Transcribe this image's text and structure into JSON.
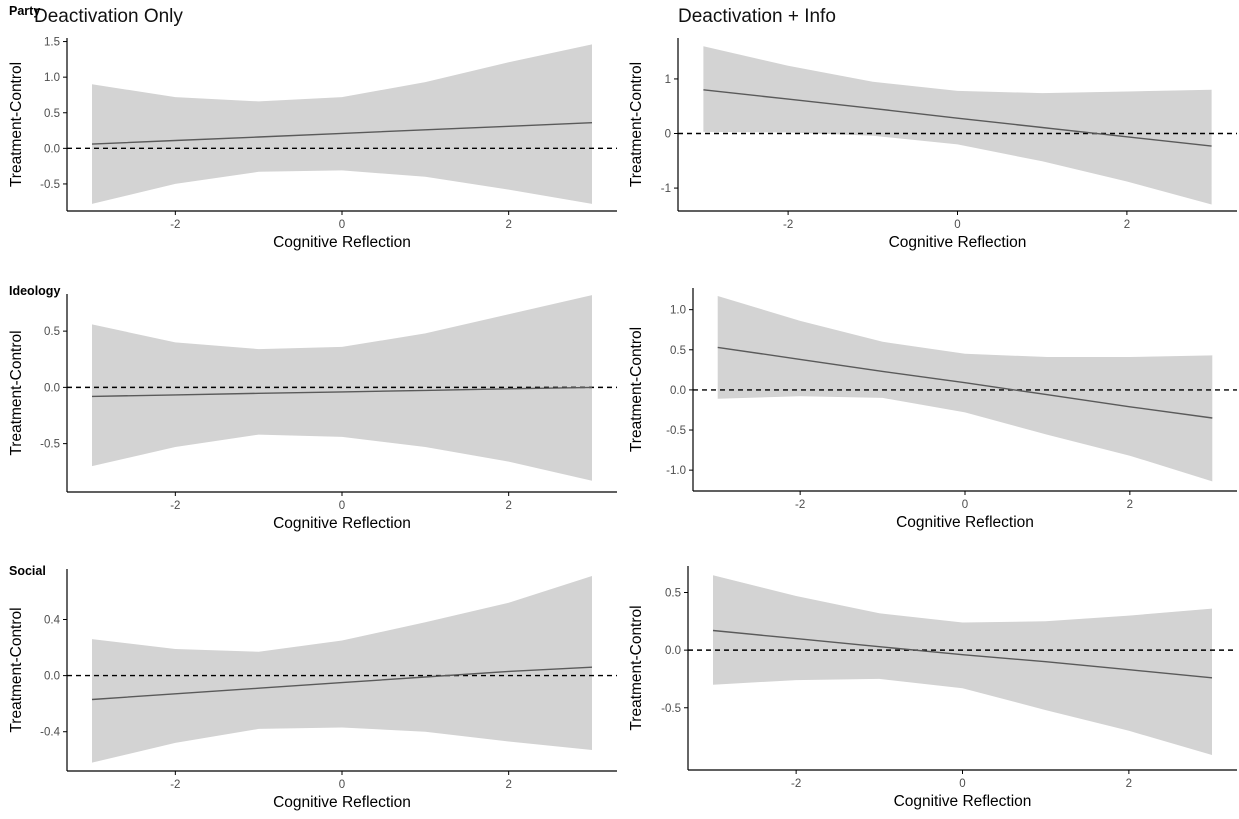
{
  "columns": [
    "Deactivation Only",
    "Deactivation + Info"
  ],
  "rows": [
    "Party",
    "Ideology",
    "Social"
  ],
  "colors": {
    "ribbon": "#d3d3d3",
    "line": "#5a5a5a",
    "reference_line": "#000000",
    "axis": "#000000",
    "tick_label": "#4d4d4d",
    "text": "#000000"
  },
  "chart_data": [
    {
      "type": "line",
      "row": "Party",
      "column": "Deactivation Only",
      "xlabel": "Cognitive Reflection",
      "ylabel": "Treatment-Control",
      "xlim": [
        -3.3,
        3.3
      ],
      "ylim": [
        -0.88,
        1.55
      ],
      "xticks": [
        -2,
        0,
        2
      ],
      "yticks": [
        -0.5,
        0.0,
        0.5,
        1.0,
        1.5
      ],
      "ytick_labels": [
        "-0.5",
        "0.0",
        "0.5",
        "1.0",
        "1.5"
      ],
      "reference_line": {
        "y": 0,
        "style": "dashed"
      },
      "x": [
        -3,
        -2,
        -1,
        0,
        1,
        2,
        3
      ],
      "estimate": [
        0.06,
        0.11,
        0.16,
        0.21,
        0.26,
        0.31,
        0.36
      ],
      "lower": [
        -0.78,
        -0.5,
        -0.33,
        -0.31,
        -0.4,
        -0.58,
        -0.78
      ],
      "upper": [
        0.9,
        0.72,
        0.66,
        0.72,
        0.93,
        1.21,
        1.46
      ],
      "grid": false
    },
    {
      "type": "line",
      "row": "Party",
      "column": "Deactivation + Info",
      "xlabel": "Cognitive Reflection",
      "ylabel": "Treatment-Control",
      "xlim": [
        -3.3,
        3.3
      ],
      "ylim": [
        -1.42,
        1.75
      ],
      "xticks": [
        -2,
        0,
        2
      ],
      "yticks": [
        -1,
        0,
        1
      ],
      "ytick_labels": [
        "-1",
        "0",
        "1"
      ],
      "reference_line": {
        "y": 0,
        "style": "dashed"
      },
      "x": [
        -3,
        -2,
        -1,
        0,
        1,
        2,
        3
      ],
      "estimate": [
        0.8,
        0.63,
        0.46,
        0.28,
        0.11,
        -0.06,
        -0.23
      ],
      "lower": [
        0.03,
        0.02,
        -0.04,
        -0.2,
        -0.51,
        -0.88,
        -1.3
      ],
      "upper": [
        1.6,
        1.24,
        0.95,
        0.78,
        0.74,
        0.77,
        0.8
      ],
      "grid": false
    },
    {
      "type": "line",
      "row": "Ideology",
      "column": "Deactivation Only",
      "xlabel": "Cognitive Reflection",
      "ylabel": "Treatment-Control",
      "xlim": [
        -3.3,
        3.3
      ],
      "ylim": [
        -0.93,
        0.83
      ],
      "xticks": [
        -2,
        0,
        2
      ],
      "yticks": [
        -0.5,
        0.0,
        0.5
      ],
      "ytick_labels": [
        "-0.5",
        "0.0",
        "0.5"
      ],
      "reference_line": {
        "y": 0,
        "style": "dashed"
      },
      "x": [
        -3,
        -2,
        -1,
        0,
        1,
        2,
        3
      ],
      "estimate": [
        -0.08,
        -0.067,
        -0.053,
        -0.04,
        -0.027,
        -0.013,
        0.0
      ],
      "lower": [
        -0.7,
        -0.53,
        -0.42,
        -0.44,
        -0.53,
        -0.66,
        -0.83
      ],
      "upper": [
        0.56,
        0.4,
        0.34,
        0.36,
        0.48,
        0.65,
        0.82
      ],
      "grid": false
    },
    {
      "type": "line",
      "row": "Ideology",
      "column": "Deactivation + Info",
      "xlabel": "Cognitive Reflection",
      "ylabel": "Treatment-Control",
      "xlim": [
        -3.3,
        3.3
      ],
      "ylim": [
        -1.26,
        1.27
      ],
      "xticks": [
        -2,
        0,
        2
      ],
      "yticks": [
        -1.0,
        -0.5,
        0.0,
        0.5,
        1.0
      ],
      "ytick_labels": [
        "-1.0",
        "-0.5",
        "0.0",
        "0.5",
        "1.0"
      ],
      "reference_line": {
        "y": 0,
        "style": "dashed"
      },
      "x": [
        -3,
        -2,
        -1,
        0,
        1,
        2,
        3
      ],
      "estimate": [
        0.53,
        0.38,
        0.23,
        0.09,
        -0.06,
        -0.21,
        -0.35
      ],
      "lower": [
        -0.11,
        -0.08,
        -0.1,
        -0.28,
        -0.56,
        -0.82,
        -1.14
      ],
      "upper": [
        1.17,
        0.86,
        0.6,
        0.45,
        0.41,
        0.41,
        0.43
      ],
      "grid": false
    },
    {
      "type": "line",
      "row": "Social",
      "column": "Deactivation Only",
      "xlabel": "Cognitive Reflection",
      "ylabel": "Treatment-Control",
      "xlim": [
        -3.3,
        3.3
      ],
      "ylim": [
        -0.68,
        0.76
      ],
      "xticks": [
        -2,
        0,
        2
      ],
      "yticks": [
        -0.4,
        0.0,
        0.4
      ],
      "ytick_labels": [
        "-0.4",
        "0.0",
        "0.4"
      ],
      "reference_line": {
        "y": 0,
        "style": "dashed"
      },
      "x": [
        -3,
        -2,
        -1,
        0,
        1,
        2,
        3
      ],
      "estimate": [
        -0.17,
        -0.13,
        -0.09,
        -0.05,
        -0.01,
        0.03,
        0.06
      ],
      "lower": [
        -0.62,
        -0.48,
        -0.38,
        -0.37,
        -0.4,
        -0.47,
        -0.53
      ],
      "upper": [
        0.26,
        0.19,
        0.17,
        0.25,
        0.38,
        0.52,
        0.71
      ],
      "grid": false
    },
    {
      "type": "line",
      "row": "Social",
      "column": "Deactivation + Info",
      "xlabel": "Cognitive Reflection",
      "ylabel": "Treatment-Control",
      "xlim": [
        -3.3,
        3.3
      ],
      "ylim": [
        -1.04,
        0.73
      ],
      "xticks": [
        -2,
        0,
        2
      ],
      "yticks": [
        -0.5,
        0.0,
        0.5
      ],
      "ytick_labels": [
        "-0.5",
        "0.0",
        "0.5"
      ],
      "reference_line": {
        "y": 0,
        "style": "dashed"
      },
      "x": [
        -3,
        -2,
        -1,
        0,
        1,
        2,
        3
      ],
      "estimate": [
        0.17,
        0.1,
        0.03,
        -0.04,
        -0.1,
        -0.17,
        -0.24
      ],
      "lower": [
        -0.3,
        -0.26,
        -0.25,
        -0.33,
        -0.52,
        -0.7,
        -0.91
      ],
      "upper": [
        0.65,
        0.47,
        0.32,
        0.24,
        0.25,
        0.3,
        0.36
      ],
      "grid": false
    }
  ]
}
